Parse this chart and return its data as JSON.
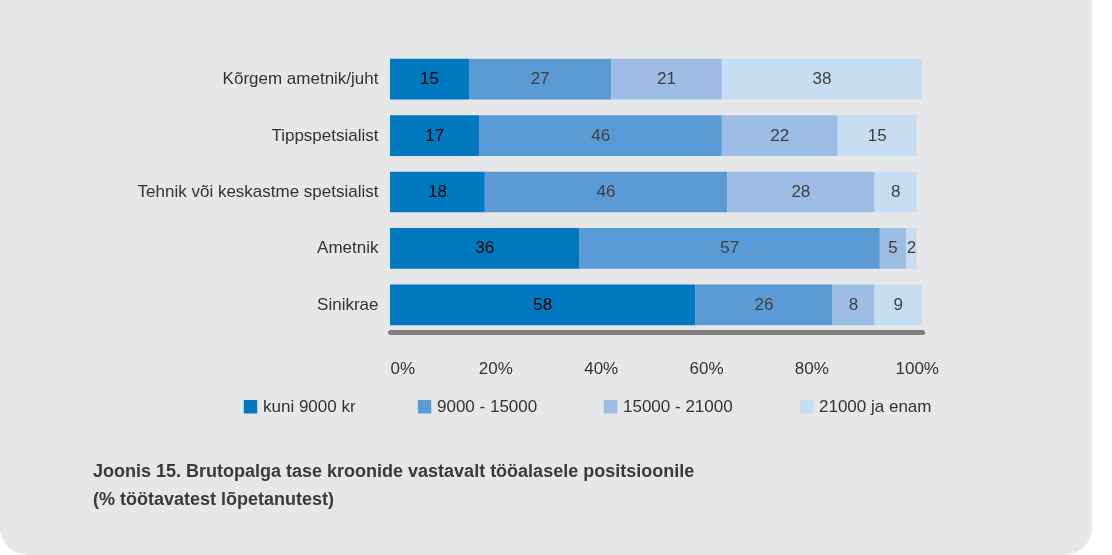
{
  "chart_data": {
    "type": "bar",
    "orientation": "horizontal",
    "stacked": true,
    "data_labels": true,
    "legend": "bottom",
    "grid": false,
    "title": "Joonis 15. Brutopalga tase kroonide vastavalt tööalasele positsioonile (% töötavatest lõpetanutest)",
    "categories": [
      "Kõrgem ametnik/juht",
      "Tippspetsialist",
      "Tehnik või keskastme spetsialist",
      "Ametnik",
      "Sinikrae"
    ],
    "xlim": [
      0,
      101
    ],
    "xticks": [
      {
        "value": 0,
        "label": "0%"
      },
      {
        "value": 20,
        "label": "20%"
      },
      {
        "value": 40,
        "label": "40%"
      },
      {
        "value": 60,
        "label": "60%"
      },
      {
        "value": 80,
        "label": "80%"
      },
      {
        "value": 100,
        "label": "100%"
      }
    ],
    "series": [
      {
        "name": "kuni 9000 kr",
        "color": "#0079c1",
        "values": [
          15,
          17,
          18,
          36,
          58
        ]
      },
      {
        "name": "9000  - 15000",
        "color": "#5b9bd5",
        "values": [
          27,
          46,
          46,
          57,
          26
        ]
      },
      {
        "name": "15000  - 21000",
        "color": "#9dbde4",
        "values": [
          21,
          22,
          28,
          5,
          8
        ]
      },
      {
        "name": "21000 ja enam",
        "color": "#c7ddf2",
        "values": [
          38,
          15,
          8,
          2,
          9
        ]
      }
    ]
  }
}
